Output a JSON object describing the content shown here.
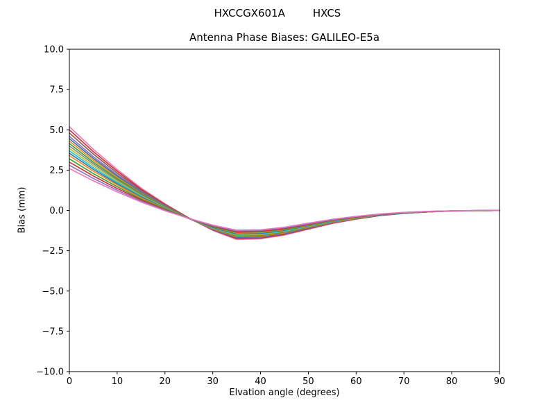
{
  "header": {
    "suptitle_left": "HXCCGX601A",
    "suptitle_right": "HXCS",
    "title": "Antenna Phase Biases: GALILEO-E5a"
  },
  "chart_data": {
    "type": "line",
    "suptitle": "HXCCGX601A      HXCS",
    "title": "Antenna Phase Biases: GALILEO-E5a",
    "xlabel": "Elvation angle (degrees)",
    "ylabel": "Bias (mm)",
    "xlim": [
      0,
      90
    ],
    "ylim": [
      -10,
      10
    ],
    "grid": false,
    "legend": "none",
    "xticks": [
      0,
      10,
      20,
      30,
      40,
      50,
      60,
      70,
      80,
      90
    ],
    "xtick_labels": [
      "0",
      "10",
      "20",
      "30",
      "40",
      "50",
      "60",
      "70",
      "80",
      "90"
    ],
    "yticks": [
      -10,
      -7.5,
      -5,
      -2.5,
      0,
      2.5,
      5,
      7.5,
      10
    ],
    "ytick_labels": [
      "−10.0",
      "−7.5",
      "−5.0",
      "−2.5",
      "0.0",
      "2.5",
      "5.0",
      "7.5",
      "10.0"
    ],
    "x": [
      0,
      5,
      10,
      15,
      20,
      25,
      30,
      35,
      40,
      45,
      50,
      55,
      60,
      65,
      70,
      75,
      80,
      85,
      90
    ],
    "series": [
      {
        "name": "s01",
        "color": "#e377c2",
        "values": [
          5.2,
          3.8,
          2.54,
          1.39,
          0.41,
          -0.47,
          -1.24,
          -1.8,
          -1.76,
          -1.53,
          -1.17,
          -0.81,
          -0.54,
          -0.32,
          -0.18,
          -0.09,
          -0.04,
          -0.02,
          0.0
        ]
      },
      {
        "name": "s02",
        "color": "#d62728",
        "values": [
          5.0,
          3.65,
          2.44,
          1.32,
          0.38,
          -0.47,
          -1.21,
          -1.75,
          -1.72,
          -1.49,
          -1.14,
          -0.79,
          -0.53,
          -0.32,
          -0.18,
          -0.09,
          -0.04,
          -0.02,
          0.0
        ]
      },
      {
        "name": "s03",
        "color": "#8c564b",
        "values": [
          4.8,
          3.5,
          2.32,
          1.25,
          0.33,
          -0.48,
          -1.2,
          -1.72,
          -1.69,
          -1.46,
          -1.12,
          -0.77,
          -0.52,
          -0.31,
          -0.17,
          -0.09,
          -0.03,
          -0.02,
          0.0
        ]
      },
      {
        "name": "s04",
        "color": "#9467bd",
        "values": [
          4.6,
          3.34,
          2.21,
          1.18,
          0.3,
          -0.49,
          -1.18,
          -1.68,
          -1.65,
          -1.43,
          -1.09,
          -0.76,
          -0.5,
          -0.3,
          -0.17,
          -0.08,
          -0.03,
          -0.02,
          0.0
        ]
      },
      {
        "name": "s05",
        "color": "#1f77b4",
        "values": [
          4.45,
          3.23,
          2.13,
          1.13,
          0.27,
          -0.49,
          -1.16,
          -1.65,
          -1.62,
          -1.4,
          -1.07,
          -0.74,
          -0.5,
          -0.3,
          -0.17,
          -0.08,
          -0.03,
          -0.02,
          0.0
        ]
      },
      {
        "name": "s06",
        "color": "#ff7f0e",
        "values": [
          4.3,
          3.12,
          2.05,
          1.07,
          0.25,
          -0.5,
          -1.15,
          -1.62,
          -1.59,
          -1.38,
          -1.05,
          -0.73,
          -0.49,
          -0.29,
          -0.16,
          -0.08,
          -0.03,
          -0.02,
          0.0
        ]
      },
      {
        "name": "s07",
        "color": "#2ca02c",
        "values": [
          4.15,
          3.0,
          1.97,
          1.03,
          0.23,
          -0.49,
          -1.12,
          -1.58,
          -1.55,
          -1.34,
          -1.03,
          -0.71,
          -0.47,
          -0.28,
          -0.16,
          -0.08,
          -0.03,
          -0.02,
          0.0
        ]
      },
      {
        "name": "s08",
        "color": "#7f7f7f",
        "values": [
          4.0,
          2.89,
          1.89,
          0.98,
          0.2,
          -0.5,
          -1.11,
          -1.55,
          -1.52,
          -1.32,
          -1.01,
          -0.7,
          -0.47,
          -0.28,
          -0.16,
          -0.08,
          -0.03,
          -0.02,
          0.0
        ]
      },
      {
        "name": "s09",
        "color": "#bcbd22",
        "values": [
          3.85,
          2.78,
          1.81,
          0.92,
          0.17,
          -0.5,
          -1.09,
          -1.52,
          -1.49,
          -1.29,
          -0.99,
          -0.68,
          -0.46,
          -0.27,
          -0.15,
          -0.08,
          -0.03,
          -0.02,
          0.0
        ]
      },
      {
        "name": "s10",
        "color": "#17becf",
        "values": [
          3.7,
          2.66,
          1.73,
          0.88,
          0.15,
          -0.5,
          -1.07,
          -1.48,
          -1.45,
          -1.26,
          -0.96,
          -0.67,
          -0.44,
          -0.27,
          -0.15,
          -0.07,
          -0.03,
          -0.01,
          0.0
        ]
      },
      {
        "name": "s11",
        "color": "#1f77b4",
        "values": [
          3.55,
          2.55,
          1.65,
          0.83,
          0.13,
          -0.5,
          -1.05,
          -1.45,
          -1.42,
          -1.23,
          -0.94,
          -0.65,
          -0.44,
          -0.26,
          -0.15,
          -0.07,
          -0.03,
          -0.01,
          0.0
        ]
      },
      {
        "name": "s12",
        "color": "#ff7f0e",
        "values": [
          3.4,
          2.44,
          1.58,
          0.78,
          0.11,
          -0.49,
          -1.02,
          -1.4,
          -1.37,
          -1.19,
          -0.91,
          -0.63,
          -0.42,
          -0.25,
          -0.14,
          -0.07,
          -0.03,
          -0.01,
          0.0
        ]
      },
      {
        "name": "s13",
        "color": "#2ca02c",
        "values": [
          3.2,
          2.29,
          1.47,
          0.71,
          0.08,
          -0.49,
          -1.0,
          -1.36,
          -1.33,
          -1.16,
          -0.88,
          -0.61,
          -0.41,
          -0.24,
          -0.14,
          -0.07,
          -0.03,
          -0.01,
          0.0
        ]
      },
      {
        "name": "s14",
        "color": "#d62728",
        "values": [
          3.0,
          2.14,
          1.36,
          0.65,
          0.04,
          -0.5,
          -0.97,
          -1.32,
          -1.29,
          -1.12,
          -0.86,
          -0.59,
          -0.4,
          -0.24,
          -0.13,
          -0.07,
          -0.03,
          -0.01,
          0.0
        ]
      },
      {
        "name": "s15",
        "color": "#9467bd",
        "values": [
          2.8,
          1.99,
          1.25,
          0.58,
          0.01,
          -0.5,
          -0.94,
          -1.27,
          -1.24,
          -1.08,
          -0.83,
          -0.57,
          -0.38,
          -0.23,
          -0.13,
          -0.06,
          -0.03,
          -0.01,
          0.0
        ]
      },
      {
        "name": "s16",
        "color": "#e377c2",
        "values": [
          2.6,
          1.84,
          1.15,
          0.52,
          -0.02,
          -0.49,
          -0.91,
          -1.22,
          -1.2,
          -1.04,
          -0.79,
          -0.55,
          -0.37,
          -0.22,
          -0.12,
          -0.06,
          -0.02,
          -0.01,
          0.0
        ]
      }
    ]
  }
}
